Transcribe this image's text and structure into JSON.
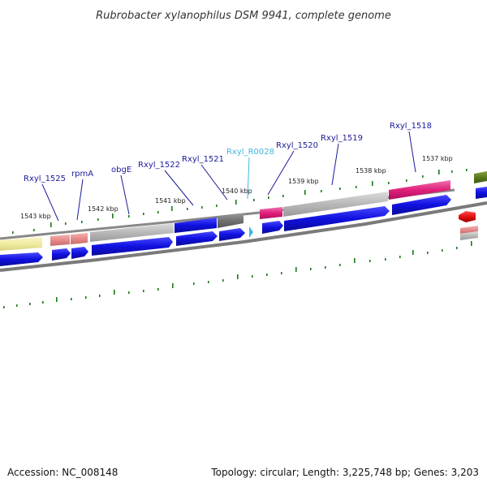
{
  "header": {
    "title": "Rubrobacter xylanophilus DSM 9941, complete genome"
  },
  "footer": {
    "accession": "Accession: NC_008148",
    "summary": "Topology: circular; Length: 3,225,748 bp; Genes: 3,203"
  },
  "scale_labels": [
    "1543 kbp",
    "1542 kbp",
    "1541 kbp",
    "1540 kbp",
    "1539 kbp",
    "1538 kbp",
    "1537 kbp"
  ],
  "gene_labels": [
    {
      "text": "Rxyl_1525",
      "kind": "gene"
    },
    {
      "text": "rpmA",
      "kind": "gene"
    },
    {
      "text": "obgE",
      "kind": "gene"
    },
    {
      "text": "Rxyl_1522",
      "kind": "gene"
    },
    {
      "text": "Rxyl_1521",
      "kind": "gene"
    },
    {
      "text": "Rxyl_R0028",
      "kind": "rna"
    },
    {
      "text": "Rxyl_1520",
      "kind": "gene"
    },
    {
      "text": "Rxyl_1519",
      "kind": "gene"
    },
    {
      "text": "Rxyl_1518",
      "kind": "gene"
    }
  ],
  "colors": {
    "cds": "#1010e0",
    "backbone": "#888888",
    "tick": "#1a7a1a",
    "label": "#1b1b9a",
    "rna_label": "#3fb6e0",
    "rna_marker": "#3fb6e0",
    "yellow": "#f0eca0",
    "salmon": "#e88a8a",
    "grey_feature": "#b8b8b8",
    "dark_grey": "#707070",
    "magenta": "#e0207a",
    "olive": "#5a7a1a",
    "red": "#e01010"
  }
}
